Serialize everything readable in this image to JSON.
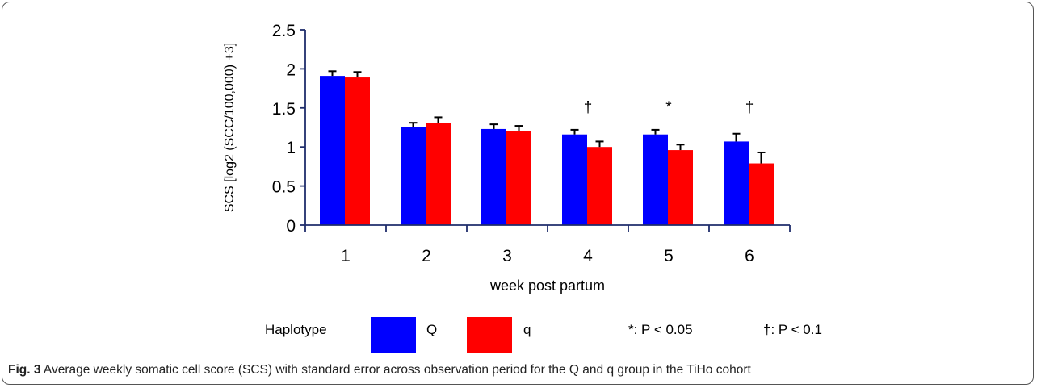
{
  "colors": {
    "series_upper": "#0000ff",
    "series_lower": "#ff0000",
    "axis": "#1f2d6b"
  },
  "chart_data": {
    "type": "bar",
    "categories": [
      "1",
      "2",
      "3",
      "4",
      "5",
      "6"
    ],
    "series": [
      {
        "name": "Q",
        "values": [
          1.91,
          1.25,
          1.23,
          1.16,
          1.16,
          1.07
        ],
        "errors": [
          0.06,
          0.06,
          0.06,
          0.06,
          0.06,
          0.1
        ],
        "color": "#0000ff"
      },
      {
        "name": "q",
        "values": [
          1.89,
          1.31,
          1.2,
          1.0,
          0.96,
          0.79
        ],
        "errors": [
          0.07,
          0.07,
          0.07,
          0.07,
          0.07,
          0.14
        ],
        "color": "#ff0000"
      }
    ],
    "yticks": [
      "0",
      "0.5",
      "1",
      "1.5",
      "2",
      "2.5"
    ],
    "ylim": [
      0,
      2.5
    ],
    "xlabel": "week post partum",
    "ylabel": "SCS [log2 (SCC/100,000) +3]",
    "annotations": [
      "",
      "",
      "",
      "†",
      "*",
      "†"
    ]
  },
  "legend": {
    "title": "Haplotype",
    "items": [
      "Q",
      "q"
    ]
  },
  "notes": {
    "significance": "*: P < 0.05",
    "trend": "†: P < 0.1"
  },
  "caption": {
    "label": "Fig. 3",
    "text": " Average weekly somatic cell score (SCS) with standard error across observation period for the Q and q group in the TiHo cohort"
  }
}
